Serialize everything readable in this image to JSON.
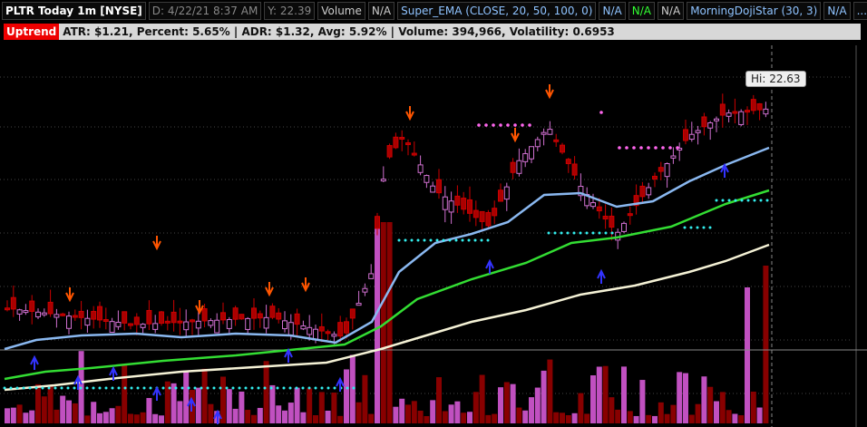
{
  "header": {
    "items": [
      "PLTR Today 1m [NYSE]",
      "D: 4/22/21 8:37 AM",
      "Y: 22.39",
      "Volume",
      "N/A",
      "Super_EMA (CLOSE, 20, 50, 100, 0)",
      "N/A",
      "N/A",
      "N/A",
      "MorningDojiStar (30, 3)",
      "N/A",
      "..."
    ]
  },
  "status": {
    "badge": "Uptrend",
    "stats": "ATR: $1.21, Percent: 5.65% | ADR: $1.32,  Avg: 5.92% | Volume: 394,966, Volatility: 0.6953"
  },
  "bubble": "Hi: 22.63"
}
